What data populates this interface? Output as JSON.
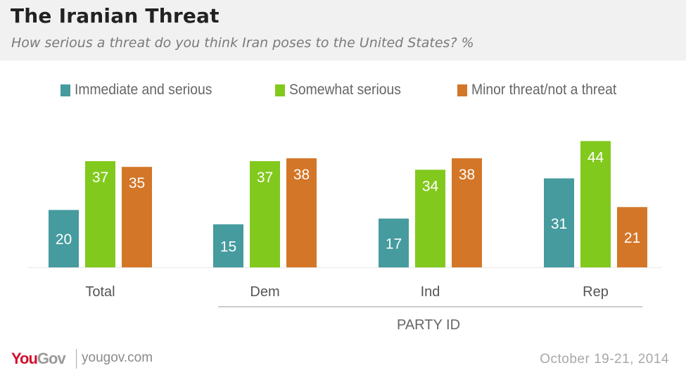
{
  "header": {
    "title": "The Iranian Threat",
    "subtitle": "How serious a threat do you think Iran poses to the United States? %"
  },
  "colors": {
    "immediate": "#459b9e",
    "somewhat": "#82c91e",
    "minor": "#d37627",
    "header_bg": "#f1f1f1",
    "logo_red": "#d3102c"
  },
  "chart_data": {
    "type": "bar",
    "title": "The Iranian Threat",
    "subtitle": "How serious a threat do you think Iran poses to the United States? %",
    "categories": [
      "Total",
      "Dem",
      "Ind",
      "Rep"
    ],
    "category_group": {
      "label": "PARTY ID",
      "members": [
        "Dem",
        "Ind",
        "Rep"
      ]
    },
    "series": [
      {
        "name": "Immediate and serious",
        "color": "#459b9e",
        "values": [
          20,
          15,
          17,
          31
        ]
      },
      {
        "name": "Somewhat serious",
        "color": "#82c91e",
        "values": [
          37,
          37,
          34,
          44
        ]
      },
      {
        "name": "Minor threat/not a threat",
        "color": "#d37627",
        "values": [
          35,
          38,
          38,
          21
        ]
      }
    ],
    "xlabel": "",
    "ylabel": "",
    "ylim": [
      0,
      50
    ],
    "grid": false,
    "legend": "top",
    "data_labels": true
  },
  "footer": {
    "logo_you": "You",
    "logo_gov": "Gov",
    "site": "yougov.com",
    "date": "October 19-21, 2014"
  }
}
